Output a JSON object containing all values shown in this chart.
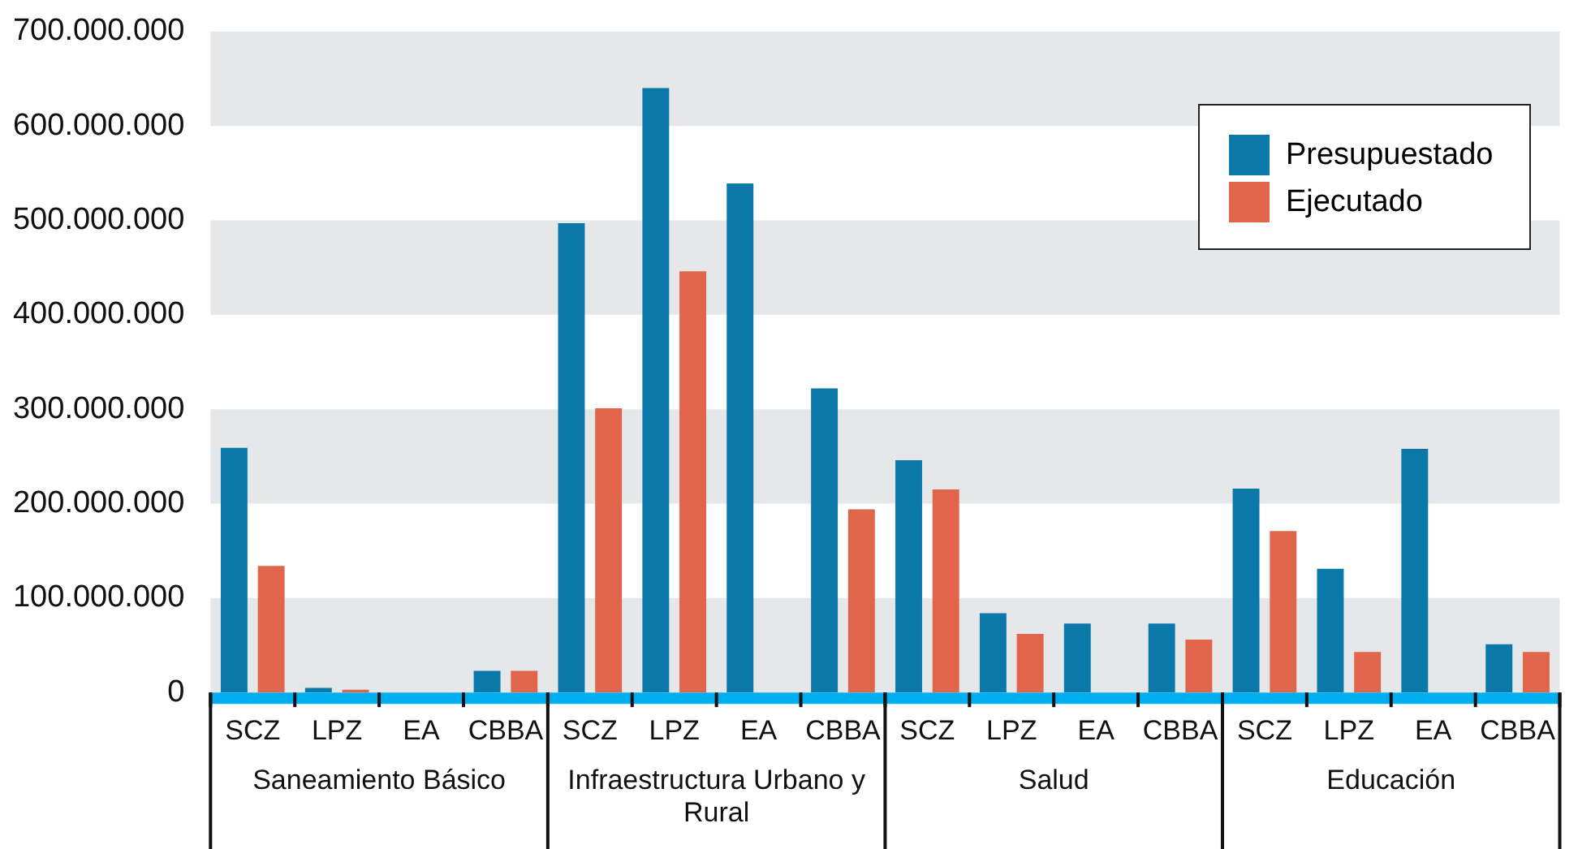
{
  "chart_data": {
    "type": "bar",
    "categories": [
      "SCZ",
      "LPZ",
      "EA",
      "CBBA",
      "SCZ",
      "LPZ",
      "EA",
      "CBBA",
      "SCZ",
      "LPZ",
      "EA",
      "CBBA",
      "SCZ",
      "LPZ",
      "EA",
      "CBBA"
    ],
    "series": [
      {
        "name": "Presupuestado",
        "color": "#0a78a8",
        "values": [
          259000000,
          5000000,
          0,
          23000000,
          497000000,
          640000000,
          539000000,
          322000000,
          246000000,
          84000000,
          73000000,
          73000000,
          216000000,
          131000000,
          258000000,
          51000000
        ]
      },
      {
        "name": "Ejecutado",
        "color": "#e0654a",
        "values": [
          134000000,
          3000000,
          0,
          23000000,
          301000000,
          446000000,
          0,
          194000000,
          215000000,
          62000000,
          0,
          56000000,
          171000000,
          43000000,
          0,
          43000000
        ]
      }
    ],
    "annotations": [
      "Saneamiento Básico",
      "Infraestructura Urbano y Rural",
      "Salud",
      "Educación"
    ],
    "ylim": [
      0,
      700000000
    ],
    "yticks": [
      {
        "value": 0,
        "label": "0"
      },
      {
        "value": 100000000,
        "label": "100.000.000"
      },
      {
        "value": 200000000,
        "label": "200.000.000"
      },
      {
        "value": 300000000,
        "label": "300.000.000"
      },
      {
        "value": 400000000,
        "label": "400.000.000"
      },
      {
        "value": 500000000,
        "label": "500.000.000"
      },
      {
        "value": 600000000,
        "label": "600.000.000"
      },
      {
        "value": 700000000,
        "label": "700.000.000"
      }
    ],
    "bands": [
      {
        "axis": "y",
        "from": 0,
        "to": 100000000,
        "color": "#e6e7e8"
      },
      {
        "axis": "y",
        "from": 200000000,
        "to": 300000000,
        "color": "#e6e7e8"
      },
      {
        "axis": "y",
        "from": 400000000,
        "to": 500000000,
        "color": "#e6e7e8"
      },
      {
        "axis": "y",
        "from": 600000000,
        "to": 700000000,
        "color": "#e6e7e8"
      }
    ],
    "legend": "top right"
  }
}
